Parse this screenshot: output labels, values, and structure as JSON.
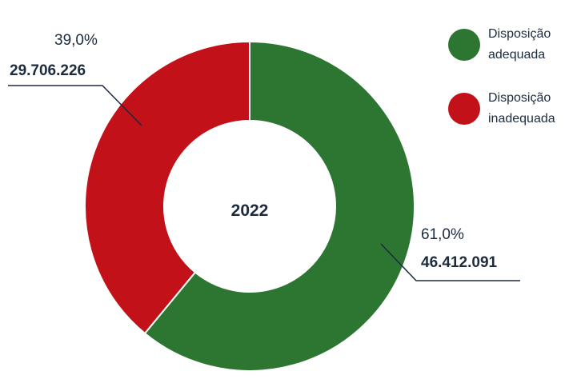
{
  "chart_data": {
    "type": "pie",
    "center_label": "2022",
    "series": [
      {
        "name": "Disposição adequada",
        "value": 46412091,
        "value_label": "46.412.091",
        "percent": 61.0,
        "percent_label": "61,0%",
        "color": "#2d7631"
      },
      {
        "name": "Disposição inadequada",
        "value": 29706226,
        "value_label": "29.706.226",
        "percent": 39.0,
        "percent_label": "39,0%",
        "color": "#c21118"
      }
    ],
    "legend": [
      {
        "label": "Disposição adequada",
        "color": "#2d7631"
      },
      {
        "label": "Disposição inadequada",
        "color": "#c21118"
      }
    ],
    "legend_position": "top-right",
    "leader_line_color": "#1c2b3d"
  }
}
